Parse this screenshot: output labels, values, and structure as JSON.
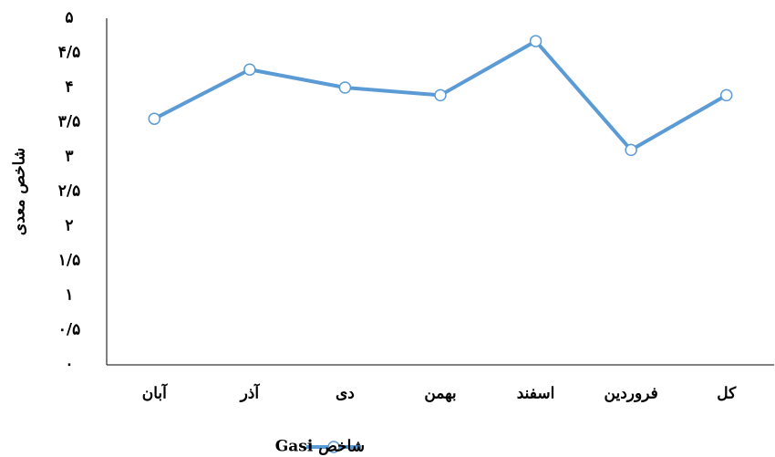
{
  "chart_data": {
    "type": "line",
    "y_label": "شاخص معدی",
    "categories": [
      "آبان",
      "آذر",
      "دی",
      "بهمن",
      "اسفند",
      "فروردین",
      "کل"
    ],
    "series": [
      {
        "name": "شاخص Gasi",
        "color": "#5b9bd5",
        "values": [
          3.55,
          4.26,
          4.0,
          3.89,
          4.67,
          3.1,
          3.89
        ]
      }
    ],
    "ylim": [
      0,
      5
    ],
    "yticks": [
      {
        "value": 0,
        "label": "۰"
      },
      {
        "value": 0.5,
        "label": "۰/۵"
      },
      {
        "value": 1,
        "label": "۱"
      },
      {
        "value": 1.5,
        "label": "۱/۵"
      },
      {
        "value": 2,
        "label": "۲"
      },
      {
        "value": 2.5,
        "label": "۲/۵"
      },
      {
        "value": 3,
        "label": "۳"
      },
      {
        "value": 3.5,
        "label": "۳/۵"
      },
      {
        "value": 4,
        "label": "۴"
      },
      {
        "value": 4.5,
        "label": "۴/۵"
      },
      {
        "value": 5,
        "label": "۵"
      }
    ],
    "grid": false,
    "legend": "bottom"
  }
}
